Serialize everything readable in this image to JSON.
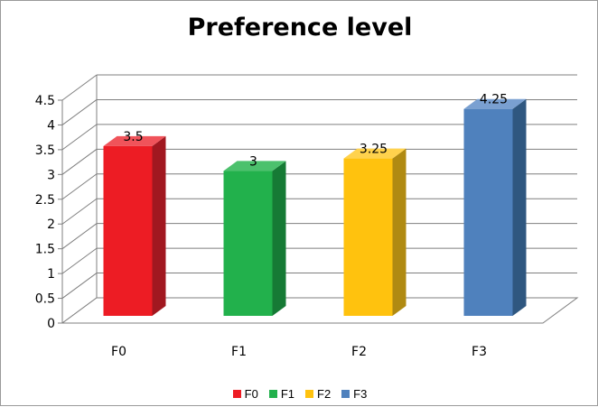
{
  "chart_data": {
    "type": "bar",
    "title": "Preference level",
    "xlabel": "",
    "ylabel": "",
    "categories": [
      "F0",
      "F1",
      "F2",
      "F3"
    ],
    "values": [
      3.5,
      3,
      3.25,
      4.25
    ],
    "data_labels": [
      "3.5",
      "3",
      "3.25",
      "4.25"
    ],
    "yticks": [
      "0",
      "0.5",
      "1",
      "1.5",
      "2",
      "2.5",
      "3",
      "3.5",
      "4",
      "4.5"
    ],
    "ylim": [
      0,
      4.5
    ],
    "grid": true,
    "three_d": true,
    "legend_position": "bottom",
    "legend": [
      "F0",
      "F1",
      "F2",
      "F3"
    ],
    "colors": [
      "#ed1c24",
      "#22b14c",
      "#ffc20e",
      "#4f81bd"
    ],
    "side_colors": [
      "#a11820",
      "#167a35",
      "#b08a12",
      "#2f5780"
    ],
    "top_colors": [
      "#f0535a",
      "#4cc16d",
      "#ffd24d",
      "#7aa0d1"
    ]
  }
}
